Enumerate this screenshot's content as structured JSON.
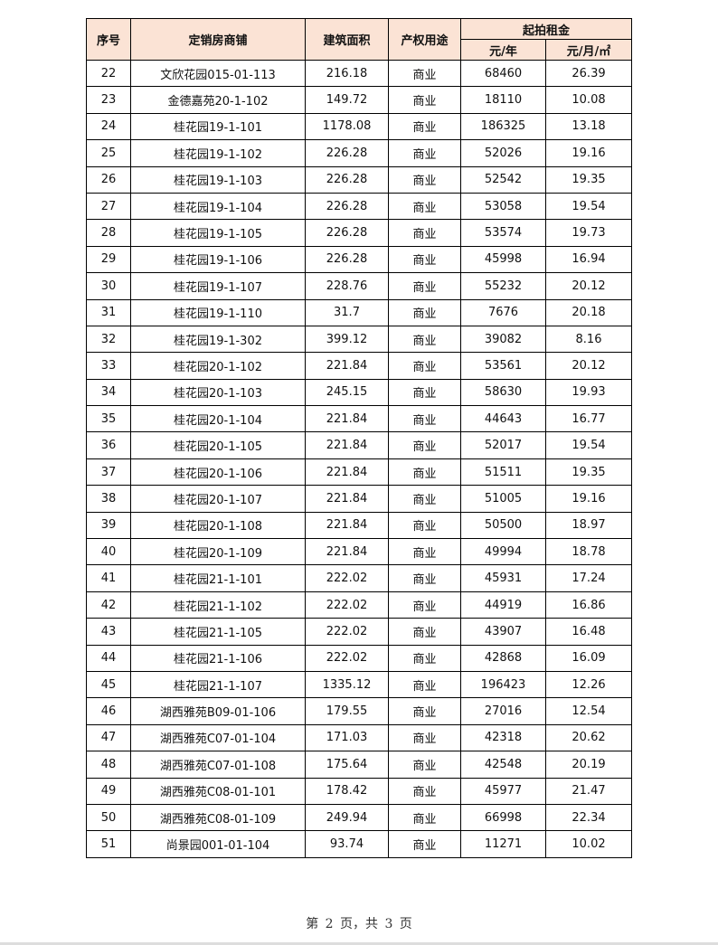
{
  "table": {
    "headers": {
      "seq": "序号",
      "shop": "定销房商铺",
      "area": "建筑面积",
      "usage": "产权用途",
      "rent": "起拍租金",
      "per_year": "元/年",
      "per_month_sqm": "元/月/㎡"
    },
    "rows": [
      [
        "22",
        "文欣花园015-01-113",
        "216.18",
        "商业",
        "68460",
        "26.39"
      ],
      [
        "23",
        "金德嘉苑20-1-102",
        "149.72",
        "商业",
        "18110",
        "10.08"
      ],
      [
        "24",
        "桂花园19-1-101",
        "1178.08",
        "商业",
        "186325",
        "13.18"
      ],
      [
        "25",
        "桂花园19-1-102",
        "226.28",
        "商业",
        "52026",
        "19.16"
      ],
      [
        "26",
        "桂花园19-1-103",
        "226.28",
        "商业",
        "52542",
        "19.35"
      ],
      [
        "27",
        "桂花园19-1-104",
        "226.28",
        "商业",
        "53058",
        "19.54"
      ],
      [
        "28",
        "桂花园19-1-105",
        "226.28",
        "商业",
        "53574",
        "19.73"
      ],
      [
        "29",
        "桂花园19-1-106",
        "226.28",
        "商业",
        "45998",
        "16.94"
      ],
      [
        "30",
        "桂花园19-1-107",
        "228.76",
        "商业",
        "55232",
        "20.12"
      ],
      [
        "31",
        "桂花园19-1-110",
        "31.7",
        "商业",
        "7676",
        "20.18"
      ],
      [
        "32",
        "桂花园19-1-302",
        "399.12",
        "商业",
        "39082",
        "8.16"
      ],
      [
        "33",
        "桂花园20-1-102",
        "221.84",
        "商业",
        "53561",
        "20.12"
      ],
      [
        "34",
        "桂花园20-1-103",
        "245.15",
        "商业",
        "58630",
        "19.93"
      ],
      [
        "35",
        "桂花园20-1-104",
        "221.84",
        "商业",
        "44643",
        "16.77"
      ],
      [
        "36",
        "桂花园20-1-105",
        "221.84",
        "商业",
        "52017",
        "19.54"
      ],
      [
        "37",
        "桂花园20-1-106",
        "221.84",
        "商业",
        "51511",
        "19.35"
      ],
      [
        "38",
        "桂花园20-1-107",
        "221.84",
        "商业",
        "51005",
        "19.16"
      ],
      [
        "39",
        "桂花园20-1-108",
        "221.84",
        "商业",
        "50500",
        "18.97"
      ],
      [
        "40",
        "桂花园20-1-109",
        "221.84",
        "商业",
        "49994",
        "18.78"
      ],
      [
        "41",
        "桂花园21-1-101",
        "222.02",
        "商业",
        "45931",
        "17.24"
      ],
      [
        "42",
        "桂花园21-1-102",
        "222.02",
        "商业",
        "44919",
        "16.86"
      ],
      [
        "43",
        "桂花园21-1-105",
        "222.02",
        "商业",
        "43907",
        "16.48"
      ],
      [
        "44",
        "桂花园21-1-106",
        "222.02",
        "商业",
        "42868",
        "16.09"
      ],
      [
        "45",
        "桂花园21-1-107",
        "1335.12",
        "商业",
        "196423",
        "12.26"
      ],
      [
        "46",
        "湖西雅苑B09-01-106",
        "179.55",
        "商业",
        "27016",
        "12.54"
      ],
      [
        "47",
        "湖西雅苑C07-01-104",
        "171.03",
        "商业",
        "42318",
        "20.62"
      ],
      [
        "48",
        "湖西雅苑C07-01-108",
        "175.64",
        "商业",
        "42548",
        "20.19"
      ],
      [
        "49",
        "湖西雅苑C08-01-101",
        "178.42",
        "商业",
        "45977",
        "21.47"
      ],
      [
        "50",
        "湖西雅苑C08-01-109",
        "249.94",
        "商业",
        "66998",
        "22.34"
      ],
      [
        "51",
        "尚景园001-01-104",
        "93.74",
        "商业",
        "11271",
        "10.02"
      ]
    ]
  },
  "footer": {
    "page_info": "第 2 页，共 3 页"
  },
  "colors": {
    "header_bg": "#fbe3d5",
    "border": "#000000"
  }
}
